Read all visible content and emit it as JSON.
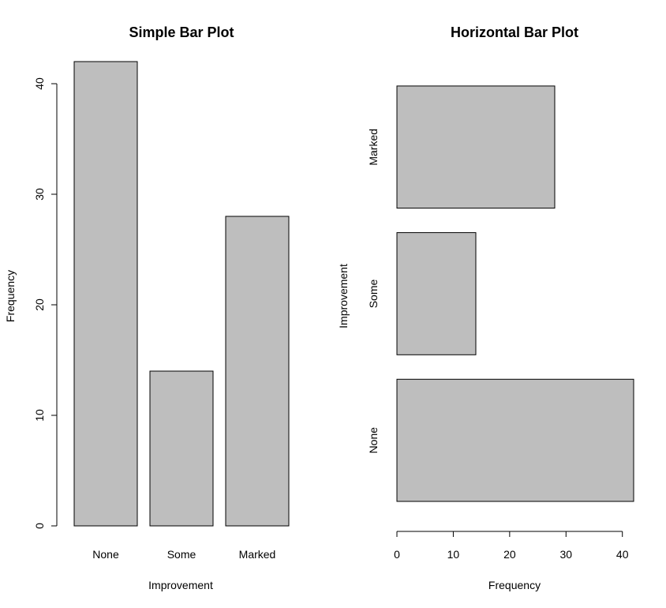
{
  "chart_data": [
    {
      "type": "bar",
      "orientation": "vertical",
      "title": "Simple Bar Plot",
      "xlabel": "Improvement",
      "ylabel": "Frequency",
      "categories": [
        "None",
        "Some",
        "Marked"
      ],
      "values": [
        42,
        14,
        28
      ],
      "ylim": [
        0,
        42
      ],
      "yticks": [
        0,
        10,
        20,
        30,
        40
      ],
      "bar_color": "#bebebe",
      "grid": false,
      "legend": "none"
    },
    {
      "type": "bar",
      "orientation": "horizontal",
      "title": "Horizontal Bar Plot",
      "xlabel": "Frequency",
      "ylabel": "Improvement",
      "categories": [
        "None",
        "Some",
        "Marked"
      ],
      "values": [
        42,
        14,
        28
      ],
      "xlim": [
        0,
        42
      ],
      "xticks": [
        0,
        10,
        20,
        30,
        40
      ],
      "bar_color": "#bebebe",
      "grid": false,
      "legend": "none"
    }
  ]
}
